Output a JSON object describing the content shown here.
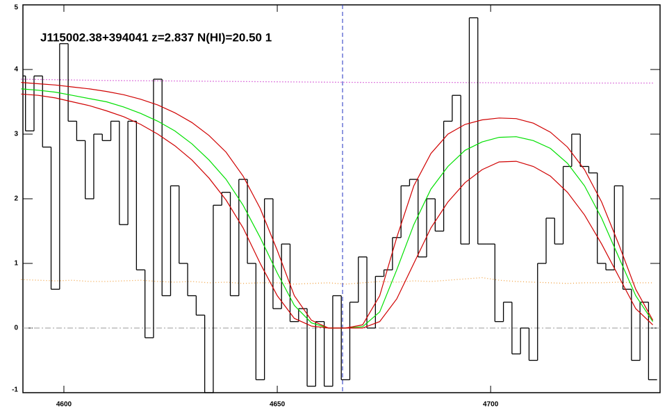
{
  "chart_data": {
    "type": "line",
    "title": "J115002.38+394041 z=2.837 N(HI)=20.50 1",
    "xlim": [
      4590.4,
      4739.7
    ],
    "ylim": [
      -1,
      5
    ],
    "xticks": [
      4600,
      4650,
      4700
    ],
    "yticks": [
      -1,
      0,
      1,
      2,
      3,
      4,
      5
    ],
    "hline": 0,
    "vline": 4665.3,
    "series": [
      {
        "color": "#000000",
        "style": "step",
        "x": [
          4590,
          4592,
          4594,
          4596,
          4598,
          4600,
          4602,
          4604,
          4606,
          4608,
          4610,
          4612,
          4614,
          4616,
          4618,
          4620,
          4622,
          4624,
          4626,
          4628,
          4630,
          4632,
          4634,
          4636,
          4638,
          4640,
          4642,
          4644,
          4646,
          4648,
          4650,
          4652,
          4654,
          4656,
          4658,
          4660,
          4662,
          4664,
          4666,
          4668,
          4670,
          4672,
          4674,
          4676,
          4678,
          4680,
          4682,
          4684,
          4686,
          4688,
          4690,
          4692,
          4694,
          4696,
          4698,
          4700,
          4702,
          4704,
          4706,
          4708,
          4710,
          4712,
          4714,
          4716,
          4718,
          4720,
          4722,
          4724,
          4726,
          4728,
          4730,
          4732,
          4734,
          4736,
          4738
        ],
        "values": [
          3.9,
          3.05,
          3.9,
          2.8,
          0.6,
          4.4,
          3.2,
          2.9,
          2.0,
          3.0,
          2.9,
          3.2,
          1.6,
          3.2,
          0.9,
          -0.15,
          3.85,
          0.5,
          2.2,
          1.0,
          0.5,
          0.2,
          -1.0,
          1.9,
          2.1,
          0.5,
          2.3,
          1.0,
          -0.8,
          2.0,
          0.3,
          1.3,
          0.1,
          0.3,
          -0.9,
          0.1,
          -0.9,
          0.5,
          -0.8,
          0.4,
          1.1,
          0.0,
          0.8,
          0.9,
          1.4,
          2.2,
          2.3,
          1.1,
          2.0,
          1.5,
          3.2,
          3.6,
          1.3,
          4.8,
          1.3,
          1.3,
          0.1,
          0.4,
          -0.4,
          0.0,
          -0.5,
          1.0,
          1.7,
          1.3,
          2.5,
          3.0,
          2.5,
          2.4,
          1.0,
          0.9,
          2.2,
          0.6,
          -0.5,
          0.4,
          -0.8
        ]
      },
      {
        "color": "#00e000",
        "style": "solid",
        "x": [
          4590,
          4594,
          4598,
          4602,
          4606,
          4610,
          4614,
          4618,
          4622,
          4626,
          4630,
          4634,
          4638,
          4642,
          4646,
          4650,
          4654,
          4658,
          4662,
          4666,
          4670,
          4674,
          4678,
          4682,
          4686,
          4690,
          4694,
          4698,
          4702,
          4706,
          4710,
          4714,
          4718,
          4722,
          4726,
          4730,
          4734,
          4738
        ],
        "values": [
          3.7,
          3.68,
          3.65,
          3.6,
          3.55,
          3.5,
          3.42,
          3.32,
          3.2,
          3.05,
          2.85,
          2.6,
          2.3,
          1.9,
          1.4,
          0.85,
          0.35,
          0.08,
          0.0,
          0.0,
          0.02,
          0.25,
          0.9,
          1.6,
          2.15,
          2.5,
          2.75,
          2.88,
          2.95,
          2.96,
          2.9,
          2.78,
          2.55,
          2.2,
          1.7,
          1.1,
          0.5,
          0.1
        ]
      },
      {
        "color": "#d00000",
        "style": "solid",
        "x": [
          4590,
          4594,
          4598,
          4602,
          4606,
          4610,
          4614,
          4618,
          4622,
          4626,
          4630,
          4634,
          4638,
          4642,
          4646,
          4650,
          4654,
          4658,
          4662,
          4666,
          4670,
          4674,
          4678,
          4682,
          4686,
          4690,
          4694,
          4698,
          4702,
          4706,
          4710,
          4714,
          4718,
          4722,
          4726,
          4730,
          4734,
          4738
        ],
        "values": [
          3.8,
          3.78,
          3.76,
          3.73,
          3.7,
          3.66,
          3.61,
          3.54,
          3.45,
          3.33,
          3.18,
          2.98,
          2.72,
          2.35,
          1.85,
          1.2,
          0.5,
          0.12,
          0.0,
          0.0,
          0.05,
          0.5,
          1.4,
          2.2,
          2.7,
          3.0,
          3.15,
          3.22,
          3.25,
          3.24,
          3.17,
          3.03,
          2.8,
          2.45,
          1.95,
          1.3,
          0.6,
          0.12
        ]
      },
      {
        "color": "#d00000",
        "style": "solid",
        "x": [
          4590,
          4594,
          4598,
          4602,
          4606,
          4610,
          4614,
          4618,
          4622,
          4626,
          4630,
          4634,
          4638,
          4642,
          4646,
          4650,
          4654,
          4658,
          4662,
          4666,
          4670,
          4674,
          4678,
          4682,
          4686,
          4690,
          4694,
          4698,
          4702,
          4706,
          4710,
          4714,
          4718,
          4722,
          4726,
          4730,
          4734,
          4738
        ],
        "values": [
          3.62,
          3.6,
          3.56,
          3.5,
          3.44,
          3.36,
          3.27,
          3.15,
          3.0,
          2.82,
          2.6,
          2.32,
          1.98,
          1.55,
          1.0,
          0.5,
          0.15,
          0.03,
          0.0,
          0.0,
          0.0,
          0.1,
          0.45,
          1.0,
          1.55,
          1.95,
          2.25,
          2.45,
          2.57,
          2.58,
          2.5,
          2.35,
          2.1,
          1.75,
          1.3,
          0.8,
          0.3,
          0.05
        ]
      },
      {
        "color": "#f0a040",
        "style": "dotted",
        "x": [
          4590,
          4594,
          4598,
          4602,
          4606,
          4610,
          4614,
          4618,
          4622,
          4626,
          4630,
          4634,
          4638,
          4642,
          4646,
          4650,
          4654,
          4658,
          4662,
          4666,
          4670,
          4674,
          4678,
          4682,
          4686,
          4690,
          4694,
          4698,
          4702,
          4706,
          4710,
          4714,
          4718,
          4722,
          4726,
          4730,
          4734,
          4738
        ],
        "values": [
          0.75,
          0.74,
          0.73,
          0.74,
          0.72,
          0.72,
          0.73,
          0.74,
          0.72,
          0.71,
          0.72,
          0.7,
          0.71,
          0.69,
          0.7,
          0.7,
          0.68,
          0.69,
          0.7,
          0.68,
          0.7,
          0.72,
          0.71,
          0.73,
          0.72,
          0.74,
          0.76,
          0.78,
          0.74,
          0.72,
          0.71,
          0.7,
          0.69,
          0.7,
          0.7,
          0.71,
          0.7,
          0.7
        ]
      },
      {
        "color": "#c000c0",
        "style": "dotted",
        "x": [
          4590,
          4610,
          4630,
          4650,
          4670,
          4690,
          4710,
          4738
        ],
        "values": [
          3.85,
          3.83,
          3.82,
          3.81,
          3.8,
          3.8,
          3.79,
          3.79
        ]
      }
    ]
  }
}
